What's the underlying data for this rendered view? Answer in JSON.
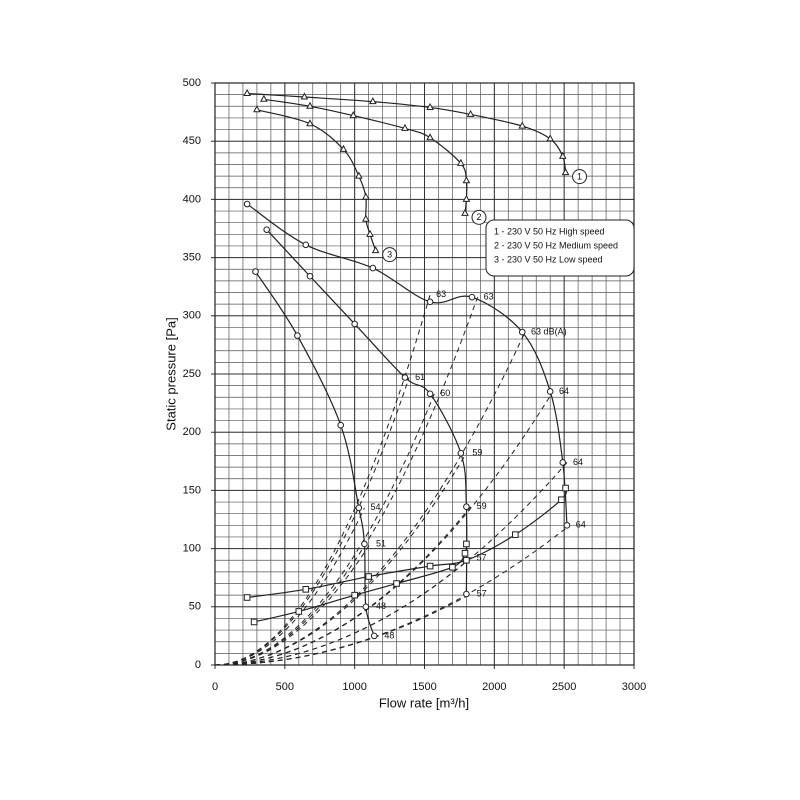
{
  "chart_data": {
    "type": "line",
    "x_label": "Flow rate [m³/h]",
    "y_label": "Static pressure [Pa]",
    "xlim": [
      0,
      3000
    ],
    "ylim": [
      0,
      500
    ],
    "xticks": [
      0,
      500,
      1000,
      1500,
      2000,
      2500,
      3000
    ],
    "yticks": [
      0,
      50,
      100,
      150,
      200,
      250,
      300,
      350,
      400,
      450,
      500
    ],
    "grid": true,
    "minor_grid": {
      "x": 100,
      "y": 10
    },
    "legend_position": "upper right",
    "series": [
      {
        "name": "1 - 230 V 50 Hz High speed",
        "curve_label": "1",
        "marker": "triangle",
        "color": "#222222",
        "x": [
          230,
          640,
          1130,
          1540,
          1830,
          2200,
          2400,
          2490,
          2510
        ],
        "values": [
          491,
          488,
          484,
          479,
          473,
          463,
          452,
          437,
          423
        ]
      },
      {
        "name": "2 - 230 V 50 Hz Medium speed",
        "curve_label": "2",
        "marker": "triangle",
        "color": "#222222",
        "x": [
          350,
          680,
          990,
          1360,
          1540,
          1760,
          1800,
          1800,
          1790
        ],
        "values": [
          486,
          480,
          472,
          461,
          453,
          431,
          416,
          400,
          388
        ]
      },
      {
        "name": "3 - 230 V 50 Hz Low speed",
        "curve_label": "3",
        "marker": "triangle",
        "color": "#222222",
        "x": [
          300,
          680,
          920,
          1030,
          1080,
          1080,
          1110,
          1150
        ],
        "values": [
          477,
          465,
          443,
          420,
          402,
          383,
          370,
          356
        ]
      },
      {
        "marker": "circle",
        "color": "#222222",
        "x": [
          230,
          650,
          1130,
          1540,
          1840,
          2200,
          2400,
          2490,
          2520
        ],
        "values": [
          396,
          361,
          341,
          312,
          316,
          286,
          235,
          174,
          120
        ]
      },
      {
        "marker": "circle",
        "color": "#222222",
        "x": [
          370,
          680,
          1000,
          1360,
          1540,
          1760,
          1800,
          1800
        ],
        "values": [
          374,
          334,
          293,
          247,
          233,
          182,
          136,
          61
        ]
      },
      {
        "marker": "circle",
        "color": "#222222",
        "x": [
          290,
          590,
          900,
          1030,
          1070,
          1080,
          1140
        ],
        "values": [
          338,
          283,
          206,
          135,
          104,
          50,
          25
        ]
      },
      {
        "marker": "square",
        "color": "#222222",
        "x": [
          230,
          650,
          1100,
          1540,
          1800,
          2150,
          2480,
          2510
        ],
        "values": [
          58,
          65,
          76,
          85,
          90,
          112,
          142,
          152
        ]
      },
      {
        "marker": "square",
        "color": "#222222",
        "x": [
          280,
          600,
          1000,
          1300,
          1700,
          1790,
          1800
        ],
        "values": [
          37,
          46,
          60,
          70,
          84,
          96,
          104
        ]
      }
    ],
    "annotations": [
      {
        "x": 1540,
        "y": 318,
        "text": "63"
      },
      {
        "x": 1880,
        "y": 316,
        "text": "63"
      },
      {
        "x": 2220,
        "y": 286,
        "text": "63 dB(A)"
      },
      {
        "x": 2420,
        "y": 235,
        "text": "64"
      },
      {
        "x": 2520,
        "y": 174,
        "text": "64"
      },
      {
        "x": 2540,
        "y": 120,
        "text": "64"
      },
      {
        "x": 1390,
        "y": 247,
        "text": "61"
      },
      {
        "x": 1570,
        "y": 233,
        "text": "60"
      },
      {
        "x": 1800,
        "y": 182,
        "text": "59"
      },
      {
        "x": 1830,
        "y": 136,
        "text": "59"
      },
      {
        "x": 1830,
        "y": 92,
        "text": "57"
      },
      {
        "x": 1830,
        "y": 61,
        "text": "57"
      },
      {
        "x": 1070,
        "y": 135,
        "text": "54"
      },
      {
        "x": 1110,
        "y": 104,
        "text": "51"
      },
      {
        "x": 1110,
        "y": 50,
        "text": "48"
      },
      {
        "x": 1170,
        "y": 25,
        "text": "48"
      }
    ]
  }
}
